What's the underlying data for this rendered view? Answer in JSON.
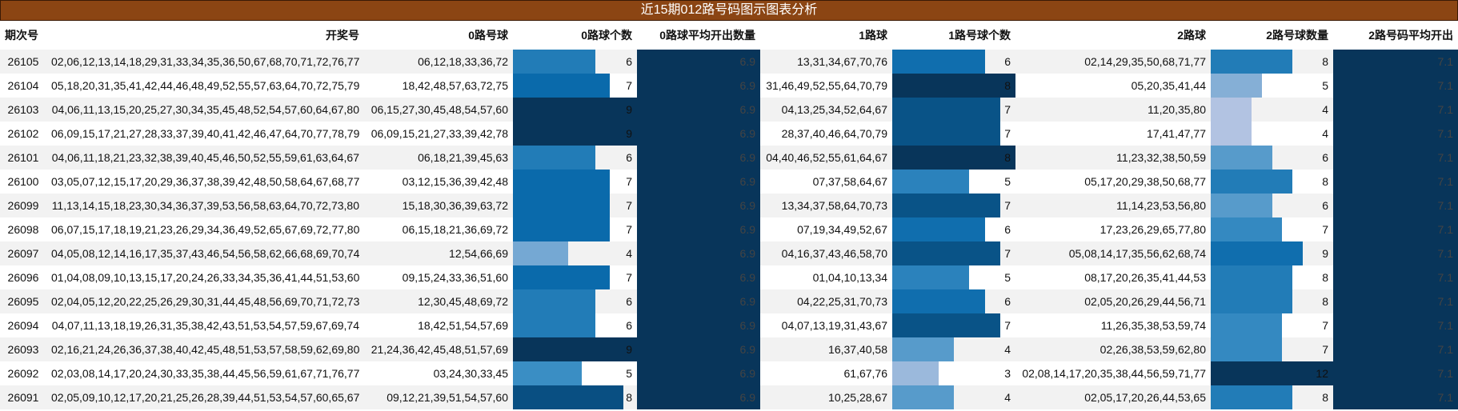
{
  "header": {
    "title": "近15期012路号码图示图表分析"
  },
  "table": {
    "columns": [
      "期次号",
      "开奖号",
      "0路号球",
      "0路球个数",
      "0路球平均开出数量",
      "1路球",
      "1路号球个数",
      "2路球",
      "2路号球数量",
      "2路号码平均开出"
    ],
    "rows": [
      [
        26105,
        "02,06,12,13,14,18,29,31,33,34,35,36,50,67,68,70,71,72,76,77",
        "06,12,18,33,36,72",
        6,
        6.9,
        "13,31,34,67,70,76",
        6,
        "02,14,29,35,50,68,71,77",
        8,
        7.1
      ],
      [
        26104,
        "05,18,20,31,35,41,42,44,46,48,49,52,55,57,63,64,70,72,75,79",
        "18,42,48,57,63,72,75",
        7,
        6.9,
        "31,46,49,52,55,64,70,79",
        8,
        "05,20,35,41,44",
        5,
        7.1
      ],
      [
        26103,
        "04,06,11,13,15,20,25,27,30,34,35,45,48,52,54,57,60,64,67,80",
        "06,15,27,30,45,48,54,57,60",
        9,
        6.9,
        "04,13,25,34,52,64,67",
        7,
        "11,20,35,80",
        4,
        7.1
      ],
      [
        26102,
        "06,09,15,17,21,27,28,33,37,39,40,41,42,46,47,64,70,77,78,79",
        "06,09,15,21,27,33,39,42,78",
        9,
        6.9,
        "28,37,40,46,64,70,79",
        7,
        "17,41,47,77",
        4,
        7.1
      ],
      [
        26101,
        "04,06,11,18,21,23,32,38,39,40,45,46,50,52,55,59,61,63,64,67",
        "06,18,21,39,45,63",
        6,
        6.9,
        "04,40,46,52,55,61,64,67",
        8,
        "11,23,32,38,50,59",
        6,
        7.1
      ],
      [
        26100,
        "03,05,07,12,15,17,20,29,36,37,38,39,42,48,50,58,64,67,68,77",
        "03,12,15,36,39,42,48",
        7,
        6.9,
        "07,37,58,64,67",
        5,
        "05,17,20,29,38,50,68,77",
        8,
        7.1
      ],
      [
        26099,
        "11,13,14,15,18,23,30,34,36,37,39,53,56,58,63,64,70,72,73,80",
        "15,18,30,36,39,63,72",
        7,
        6.9,
        "13,34,37,58,64,70,73",
        7,
        "11,14,23,53,56,80",
        6,
        7.1
      ],
      [
        26098,
        "06,07,15,17,18,19,21,23,26,29,34,36,49,52,65,67,69,72,77,80",
        "06,15,18,21,36,69,72",
        7,
        6.9,
        "07,19,34,49,52,67",
        6,
        "17,23,26,29,65,77,80",
        7,
        7.1
      ],
      [
        26097,
        "04,05,08,12,14,16,17,35,37,43,46,54,56,58,62,66,68,69,70,74",
        "12,54,66,69",
        4,
        6.9,
        "04,16,37,43,46,58,70",
        7,
        "05,08,14,17,35,56,62,68,74",
        9,
        7.1
      ],
      [
        26096,
        "01,04,08,09,10,13,15,17,20,24,26,33,34,35,36,41,44,51,53,60",
        "09,15,24,33,36,51,60",
        7,
        6.9,
        "01,04,10,13,34",
        5,
        "08,17,20,26,35,41,44,53",
        8,
        7.1
      ],
      [
        26095,
        "02,04,05,12,20,22,25,26,29,30,31,44,45,48,56,69,70,71,72,73",
        "12,30,45,48,69,72",
        6,
        6.9,
        "04,22,25,31,70,73",
        6,
        "02,05,20,26,29,44,56,71",
        8,
        7.1
      ],
      [
        26094,
        "04,07,11,13,18,19,26,31,35,38,42,43,51,53,54,57,59,67,69,74",
        "18,42,51,54,57,69",
        6,
        6.9,
        "04,07,13,19,31,43,67",
        7,
        "11,26,35,38,53,59,74",
        7,
        7.1
      ],
      [
        26093,
        "02,16,21,24,26,36,37,38,40,42,45,48,51,53,57,58,59,62,69,80",
        "21,24,36,42,45,48,51,57,69",
        9,
        6.9,
        "16,37,40,58",
        4,
        "02,26,38,53,59,62,80",
        7,
        7.1
      ],
      [
        26092,
        "02,03,08,14,17,20,24,30,33,35,38,44,45,56,59,61,67,71,76,77",
        "03,24,30,33,45",
        5,
        6.9,
        "61,67,76",
        3,
        "02,08,14,17,20,35,38,44,56,59,71,77",
        12,
        7.1
      ],
      [
        26091,
        "02,05,09,10,12,17,20,21,25,26,28,39,44,51,53,54,57,60,65,67",
        "09,12,21,39,51,54,57,60",
        8,
        6.9,
        "10,25,28,67",
        4,
        "02,05,17,20,26,44,53,65",
        8,
        7.1
      ]
    ]
  }
}
